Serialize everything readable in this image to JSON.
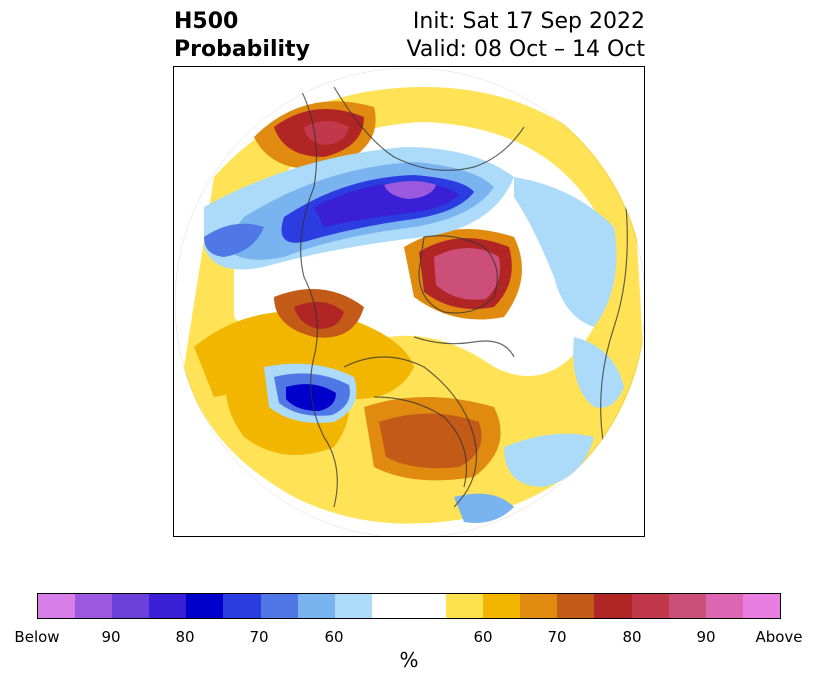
{
  "header": {
    "title_line1": "H500",
    "title_line2": "Probability",
    "init_text": "Init: Sat 17 Sep 2022",
    "valid_text": "Valid: 08 Oct – 14 Oct"
  },
  "colorbar": {
    "unit_label": "%",
    "tick_labels": [
      "Below",
      "90",
      "80",
      "70",
      "60",
      "60",
      "70",
      "80",
      "90",
      "Above"
    ],
    "colors": [
      "#d77ee8",
      "#9b59e0",
      "#6b3fd9",
      "#3a1fd6",
      "#0000cc",
      "#2b3de0",
      "#4f78e6",
      "#7ab4f0",
      "#acdbfa",
      "#ffffff",
      "#ffe04d",
      "#f2b600",
      "#e08a10",
      "#c45a17",
      "#b22525",
      "#c0384a",
      "#cc4f7a",
      "#dd66b3",
      "#e87fe0"
    ]
  }
}
